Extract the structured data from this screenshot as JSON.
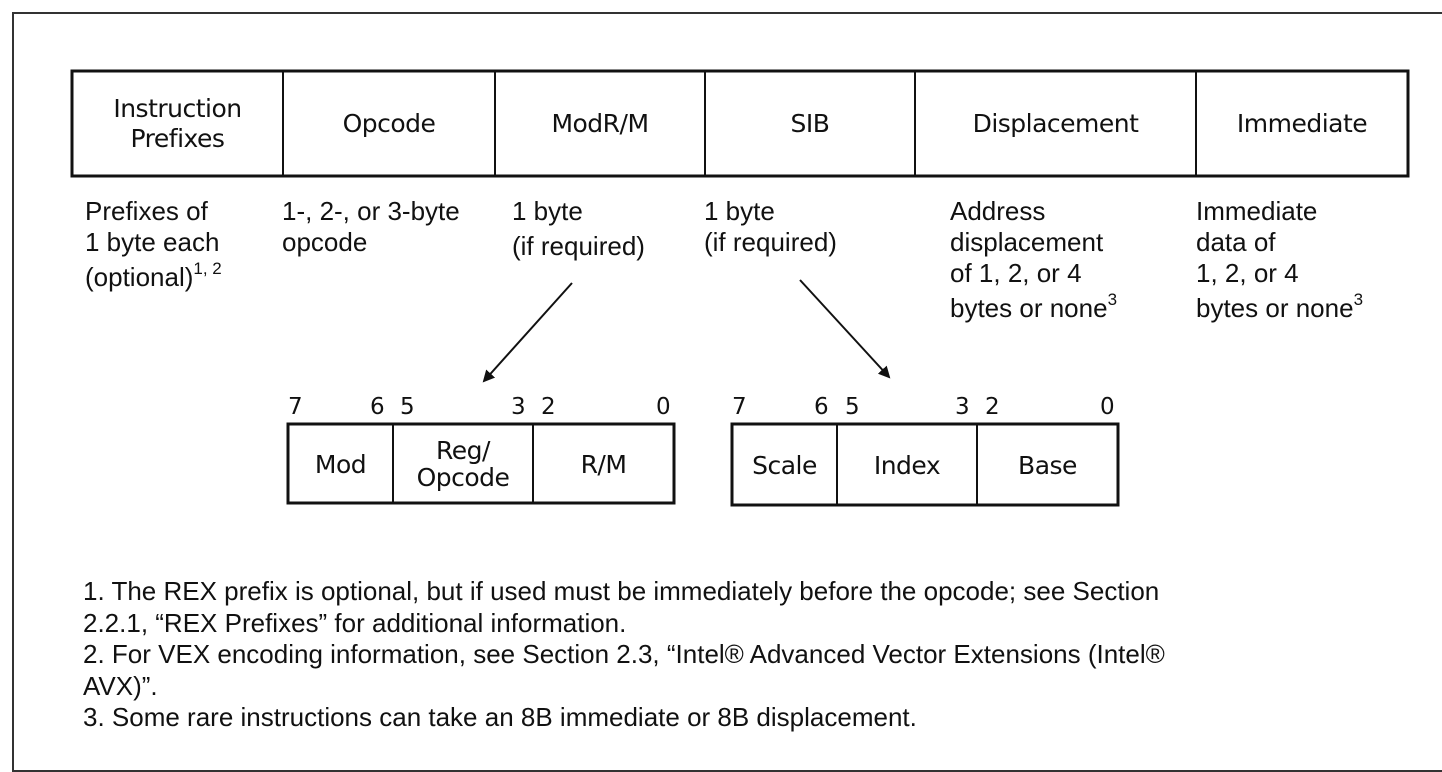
{
  "format_fields": [
    {
      "label": "Instruction\nPrefixes",
      "desc": [
        "Prefixes of",
        "1 byte each",
        "(optional)"
      ],
      "desc_sup": "1, 2"
    },
    {
      "label": "Opcode",
      "desc": [
        "1-, 2-, or 3-byte",
        "opcode"
      ],
      "desc_sup": ""
    },
    {
      "label": "ModR/M",
      "desc": [
        "1 byte",
        "(if required)"
      ],
      "desc_sup": ""
    },
    {
      "label": "SIB",
      "desc": [
        "1 byte",
        "(if required)"
      ],
      "desc_sup": ""
    },
    {
      "label": "Displacement",
      "desc": [
        "Address",
        "displacement",
        "of 1, 2, or 4",
        "bytes or none"
      ],
      "desc_sup": "3"
    },
    {
      "label": "Immediate",
      "desc": [
        "Immediate",
        "data of",
        "1, 2, or 4",
        "bytes or none"
      ],
      "desc_sup": "3"
    }
  ],
  "modrm": {
    "bits": [
      "7",
      "6",
      "5",
      "3",
      "2",
      "0"
    ],
    "fields": [
      "Mod",
      "Reg/\nOpcode",
      "R/M"
    ]
  },
  "sib": {
    "bits": [
      "7",
      "6",
      "5",
      "3",
      "2",
      "0"
    ],
    "fields": [
      "Scale",
      "Index",
      "Base"
    ]
  },
  "notes": [
    "1. The REX prefix is optional, but if used must be immediately before the opcode; see Section",
    "2.2.1, “REX Prefixes” for additional information.",
    "2. For VEX encoding information, see Section 2.3, “Intel® Advanced Vector Extensions (Intel®",
    "AVX)”.",
    "3. Some rare instructions can take an 8B immediate or 8B displacement."
  ],
  "colors": {
    "line": "#111111",
    "frame": "#333333",
    "background": "#ffffff"
  }
}
